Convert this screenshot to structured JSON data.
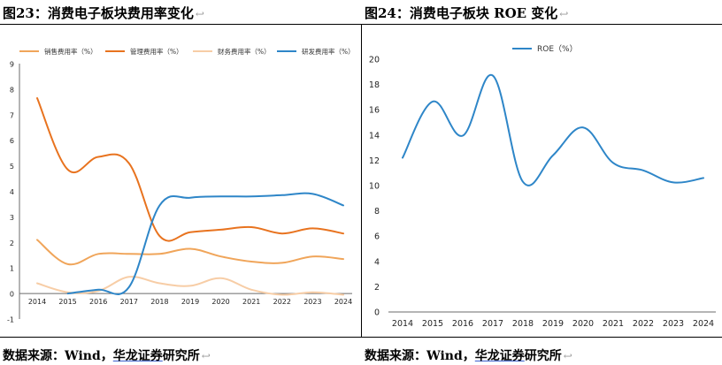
{
  "left_panel": {
    "title": "图23：消费电子板块费用率变化",
    "return_mark": "↩"
  },
  "right_panel": {
    "title": "图24：消费电子板块 ROE 变化",
    "return_mark": "↩"
  },
  "sources": {
    "left": {
      "prefix": "数据来源：Wind，",
      "firm": "华龙证券",
      "suffix": "研究所",
      "return_mark": "↩"
    },
    "right": {
      "prefix": "数据来源：Wind，",
      "firm": "华龙证券",
      "suffix": "研究所",
      "return_mark": "↩"
    }
  },
  "colors": {
    "sales": "#f0a55a",
    "admin": "#e8731f",
    "finance": "#f7cda6",
    "rnd": "#2e86c8",
    "roe": "#2e86c8"
  },
  "chart_data": [
    {
      "type": "line",
      "title": "消费电子板块费用率变化",
      "categories": [
        "2014",
        "2015",
        "2016",
        "2017",
        "2018",
        "2019",
        "2020",
        "2021",
        "2022",
        "2023",
        "2024"
      ],
      "series": [
        {
          "name": "销售费用率（%）",
          "color": "#f0a55a",
          "values": [
            2.1,
            1.15,
            1.55,
            1.55,
            1.55,
            1.75,
            1.45,
            1.25,
            1.2,
            1.45,
            1.35
          ]
        },
        {
          "name": "管理费用率（%）",
          "color": "#e8731f",
          "values": [
            7.65,
            4.85,
            5.35,
            5.1,
            2.25,
            2.4,
            2.5,
            2.6,
            2.35,
            2.55,
            2.35
          ]
        },
        {
          "name": "财务费用率（%）",
          "color": "#f7cda6",
          "values": [
            0.4,
            0.05,
            0.1,
            0.65,
            0.4,
            0.3,
            0.6,
            0.15,
            -0.05,
            0.05,
            -0.05
          ]
        },
        {
          "name": "研发费用率（%）",
          "color": "#2e86c8",
          "values": [
            null,
            0.0,
            0.15,
            0.25,
            3.45,
            3.75,
            3.8,
            3.8,
            3.85,
            3.9,
            3.45
          ]
        }
      ],
      "yticks": [
        -1,
        0,
        1,
        2,
        3,
        4,
        5,
        6,
        7,
        8,
        9
      ],
      "ylim": [
        -1,
        9
      ],
      "xlabel": "",
      "ylabel": "",
      "legend": "top"
    },
    {
      "type": "line",
      "title": "消费电子板块 ROE 变化",
      "categories": [
        "2014",
        "2015",
        "2016",
        "2017",
        "2018",
        "2019",
        "2020",
        "2021",
        "2022",
        "2023",
        "2024"
      ],
      "series": [
        {
          "name": "ROE（%）",
          "color": "#2e86c8",
          "values": [
            12.2,
            16.65,
            13.95,
            18.7,
            10.3,
            12.4,
            14.6,
            11.8,
            11.2,
            10.25,
            10.6
          ]
        }
      ],
      "yticks": [
        0,
        2,
        4,
        6,
        8,
        10,
        12,
        14,
        16,
        18,
        20
      ],
      "ylim": [
        0,
        20
      ],
      "xlabel": "",
      "ylabel": "",
      "legend": "top"
    }
  ]
}
